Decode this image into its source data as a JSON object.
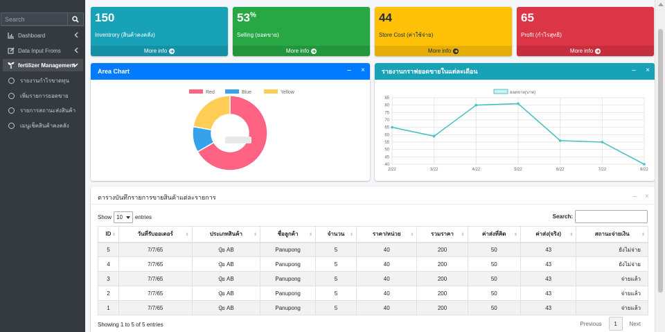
{
  "sidebar": {
    "search_placeholder": "Search",
    "items": [
      {
        "label": "Dashboard"
      },
      {
        "label": "Data Input Froms"
      },
      {
        "label": "fertilizer Management"
      },
      {
        "label": "รายงานกำไรขาดทุน"
      },
      {
        "label": "เพิ่มรายการยอดขาย"
      },
      {
        "label": "รายการสถานะส่งสินค้า"
      },
      {
        "label": "เมนูเช็คสินค้าคงคลัง"
      }
    ]
  },
  "boxes": [
    {
      "value": "150",
      "sup": "",
      "label": "Inventrory (สินค้าคงคลัง)",
      "more": "More info",
      "color": "#17a2b8"
    },
    {
      "value": "53",
      "sup": "%",
      "label": "Selling (ยอดขาย)",
      "more": "More info",
      "color": "#28a745"
    },
    {
      "value": "44",
      "sup": "",
      "label": "Store Cost (ค่าใช้จ่าย)",
      "more": "More info",
      "color": "#ffc107"
    },
    {
      "value": "65",
      "sup": "",
      "label": "Profit (กำไรสุทธิ)",
      "more": "More info",
      "color": "#dc3545"
    }
  ],
  "area_card": {
    "title": "Area Chart",
    "header_color": "#007bff"
  },
  "line_card": {
    "title": "รายงานกราฟยอดขายในแต่ละเดือน",
    "header_color": "#17a2b8"
  },
  "chart_data": [
    {
      "type": "pie",
      "categories": [
        "Red",
        "Blue",
        "Yellow"
      ],
      "values": [
        300,
        50,
        100
      ],
      "colors": [
        "#ff6384",
        "#36a2eb",
        "#ffcd56"
      ],
      "legend": "top"
    },
    {
      "type": "line",
      "series": [
        {
          "name": "ยอดขาย(บาท)",
          "values": [
            65,
            59,
            80,
            81,
            56,
            55,
            40
          ],
          "color": "#4bc0c0"
        }
      ],
      "categories": [
        "2/22",
        "3/22",
        "4/22",
        "5/22",
        "6/22",
        "7/22",
        "8/22"
      ],
      "yticks": [
        40,
        45,
        50,
        55,
        60,
        65,
        70,
        75,
        80,
        85
      ],
      "ylim": [
        40,
        85
      ],
      "grid": true,
      "legend": "top"
    }
  ],
  "table_card": {
    "title": "ตารางบันทึกรายการขายสินค้าแต่ละรายการ",
    "show_label": "Show",
    "entries_value": "10",
    "entries_label": "entries",
    "search_label": "Search:",
    "columns": [
      "ID",
      "วันที่รับออเดอร์",
      "ประเภทสินค้า",
      "ชื่อลูกค้า",
      "จำนวน",
      "ราคา/หน่วย",
      "รวมราคา",
      "ค่าส่งที่คิด",
      "ค่าส่ง(จริง)",
      "สถานะจ่ายเงิน"
    ],
    "rows": [
      [
        "5",
        "7/7/65",
        "ปุ๋ย AB",
        "Panupong",
        "5",
        "40",
        "200",
        "50",
        "43",
        "ยังไม่จ่าย"
      ],
      [
        "4",
        "7/7/65",
        "ปุ๋ย AB",
        "Panupong",
        "5",
        "40",
        "200",
        "50",
        "43",
        "ยังไม่จ่าย"
      ],
      [
        "3",
        "7/7/65",
        "ปุ๋ย AB",
        "Panupong",
        "5",
        "40",
        "200",
        "50",
        "43",
        "จ่ายแล้ว"
      ],
      [
        "2",
        "7/7/65",
        "ปุ๋ย AB",
        "Panupong",
        "5",
        "40",
        "200",
        "50",
        "43",
        "จ่ายแล้ว"
      ],
      [
        "1",
        "7/7/65",
        "ปุ๋ย AB",
        "Panupong",
        "5",
        "40",
        "200",
        "50",
        "43",
        "จ่ายแล้ว"
      ]
    ],
    "info": "Showing 1 to 5 of 5 entries",
    "prev": "Previous",
    "page": "1",
    "next": "Next"
  }
}
